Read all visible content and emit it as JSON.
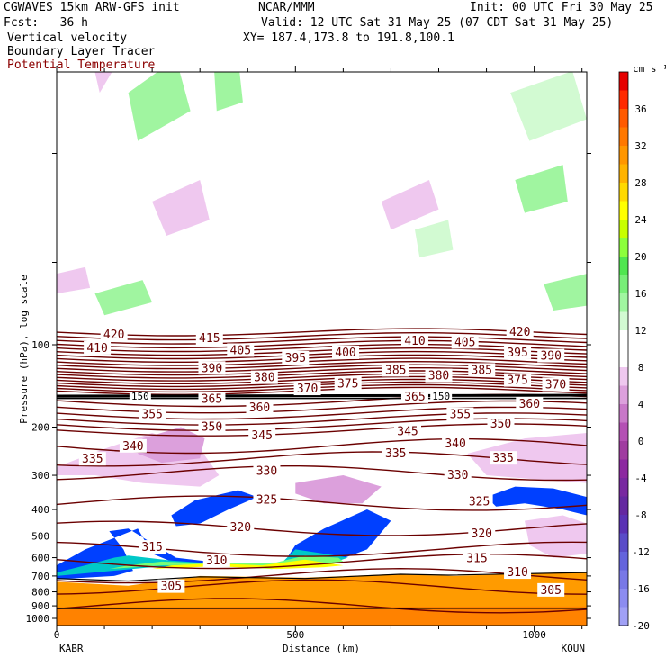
{
  "header": {
    "model": "CGWAVES 15km ARW-GFS init",
    "org": "NCAR/MMM",
    "init": "Init: 00 UTC Fri 30 May 25",
    "fcst": "Fcst:   36 h",
    "valid": "Valid: 12 UTC Sat 31 May 25 (07 CDT Sat 31 May 25)",
    "field1": "Vertical velocity",
    "field2": "Boundary Layer Tracer",
    "field3": "Potential Temperature",
    "xy": "XY= 187.4,173.8 to 191.8,100.1"
  },
  "colors": {
    "theta_contour": "#6b0000",
    "field3_label": "#8b0000"
  },
  "chart_data": {
    "type": "cross-section",
    "xlabel": "Distance (km)",
    "ylabel": "Pressure (hPa), log scale",
    "x_ticks": [
      "0",
      "500",
      "1000"
    ],
    "x_tick_values": [
      0,
      500,
      1000
    ],
    "x_range": [
      0,
      1110
    ],
    "y_ticks": [
      "100",
      "200",
      "300",
      "400",
      "500",
      "600",
      "700",
      "800",
      "900",
      "1000"
    ],
    "y_tick_values": [
      100,
      200,
      300,
      400,
      500,
      600,
      700,
      800,
      900,
      1000
    ],
    "endpoints": {
      "left": "KABR",
      "right": "KOUN"
    },
    "colorbar": {
      "unit": "cm s⁻¹",
      "labels": [
        "36",
        "32",
        "28",
        "24",
        "20",
        "16",
        "12",
        "8",
        "4",
        "0",
        "-4",
        "-8",
        "-12",
        "-16",
        "-20"
      ],
      "colors": [
        "#e60000",
        "#ff2a00",
        "#ff5a00",
        "#ff7800",
        "#ff9600",
        "#ffb300",
        "#ffd900",
        "#ffff00",
        "#c8ff00",
        "#8cff3c",
        "#50e650",
        "#78ee78",
        "#a0f5a0",
        "#d2fad2",
        "#ffffff",
        "#ffffff",
        "#efc8ef",
        "#dca0dc",
        "#c878c8",
        "#b450b4",
        "#a03ca0",
        "#8c28a0",
        "#7828a0",
        "#6428a0",
        "#5a32b4",
        "#5a4cc8",
        "#6464dc",
        "#7878e6",
        "#8c8cf0",
        "#a0a0f5"
      ]
    },
    "theta_labels": [
      {
        "t": "420",
        "x": 120,
        "p": 92
      },
      {
        "t": "420",
        "x": 970,
        "p": 90
      },
      {
        "t": "415",
        "x": 320,
        "p": 95
      },
      {
        "t": "410",
        "x": 85,
        "p": 103
      },
      {
        "t": "410",
        "x": 750,
        "p": 97
      },
      {
        "t": "405",
        "x": 385,
        "p": 105
      },
      {
        "t": "405",
        "x": 855,
        "p": 98
      },
      {
        "t": "400",
        "x": 605,
        "p": 107
      },
      {
        "t": "395",
        "x": 500,
        "p": 112
      },
      {
        "t": "395",
        "x": 965,
        "p": 107
      },
      {
        "t": "390",
        "x": 325,
        "p": 122
      },
      {
        "t": "390",
        "x": 1035,
        "p": 110
      },
      {
        "t": "385",
        "x": 710,
        "p": 124
      },
      {
        "t": "385",
        "x": 890,
        "p": 124
      },
      {
        "t": "380",
        "x": 435,
        "p": 132
      },
      {
        "t": "380",
        "x": 800,
        "p": 130
      },
      {
        "t": "375",
        "x": 610,
        "p": 139
      },
      {
        "t": "375",
        "x": 965,
        "p": 135
      },
      {
        "t": "370",
        "x": 525,
        "p": 145
      },
      {
        "t": "370",
        "x": 1045,
        "p": 140
      },
      {
        "t": "365",
        "x": 325,
        "p": 158
      },
      {
        "t": "365",
        "x": 750,
        "p": 155
      },
      {
        "t": "360",
        "x": 425,
        "p": 170
      },
      {
        "t": "360",
        "x": 990,
        "p": 165
      },
      {
        "t": "355",
        "x": 200,
        "p": 180
      },
      {
        "t": "355",
        "x": 845,
        "p": 180
      },
      {
        "t": "350",
        "x": 325,
        "p": 200
      },
      {
        "t": "350",
        "x": 930,
        "p": 195
      },
      {
        "t": "345",
        "x": 430,
        "p": 215
      },
      {
        "t": "345",
        "x": 735,
        "p": 208
      },
      {
        "t": "340",
        "x": 160,
        "p": 235
      },
      {
        "t": "340",
        "x": 835,
        "p": 230
      },
      {
        "t": "335",
        "x": 75,
        "p": 262
      },
      {
        "t": "335",
        "x": 710,
        "p": 250
      },
      {
        "t": "335",
        "x": 935,
        "p": 260
      },
      {
        "t": "330",
        "x": 440,
        "p": 290
      },
      {
        "t": "330",
        "x": 840,
        "p": 300
      },
      {
        "t": "325",
        "x": 440,
        "p": 370
      },
      {
        "t": "325",
        "x": 885,
        "p": 375
      },
      {
        "t": "320",
        "x": 385,
        "p": 465
      },
      {
        "t": "320",
        "x": 890,
        "p": 490
      },
      {
        "t": "315",
        "x": 200,
        "p": 550
      },
      {
        "t": "315",
        "x": 880,
        "p": 605
      },
      {
        "t": "310",
        "x": 335,
        "p": 615
      },
      {
        "t": "310",
        "x": 965,
        "p": 680
      },
      {
        "t": "305",
        "x": 240,
        "p": 765
      },
      {
        "t": "305",
        "x": 1035,
        "p": 790
      }
    ],
    "boundary_tracer_label": "150",
    "boundary_tracer_label_positions": [
      {
        "x": 175,
        "p": 155
      },
      {
        "x": 805,
        "p": 155
      }
    ]
  }
}
